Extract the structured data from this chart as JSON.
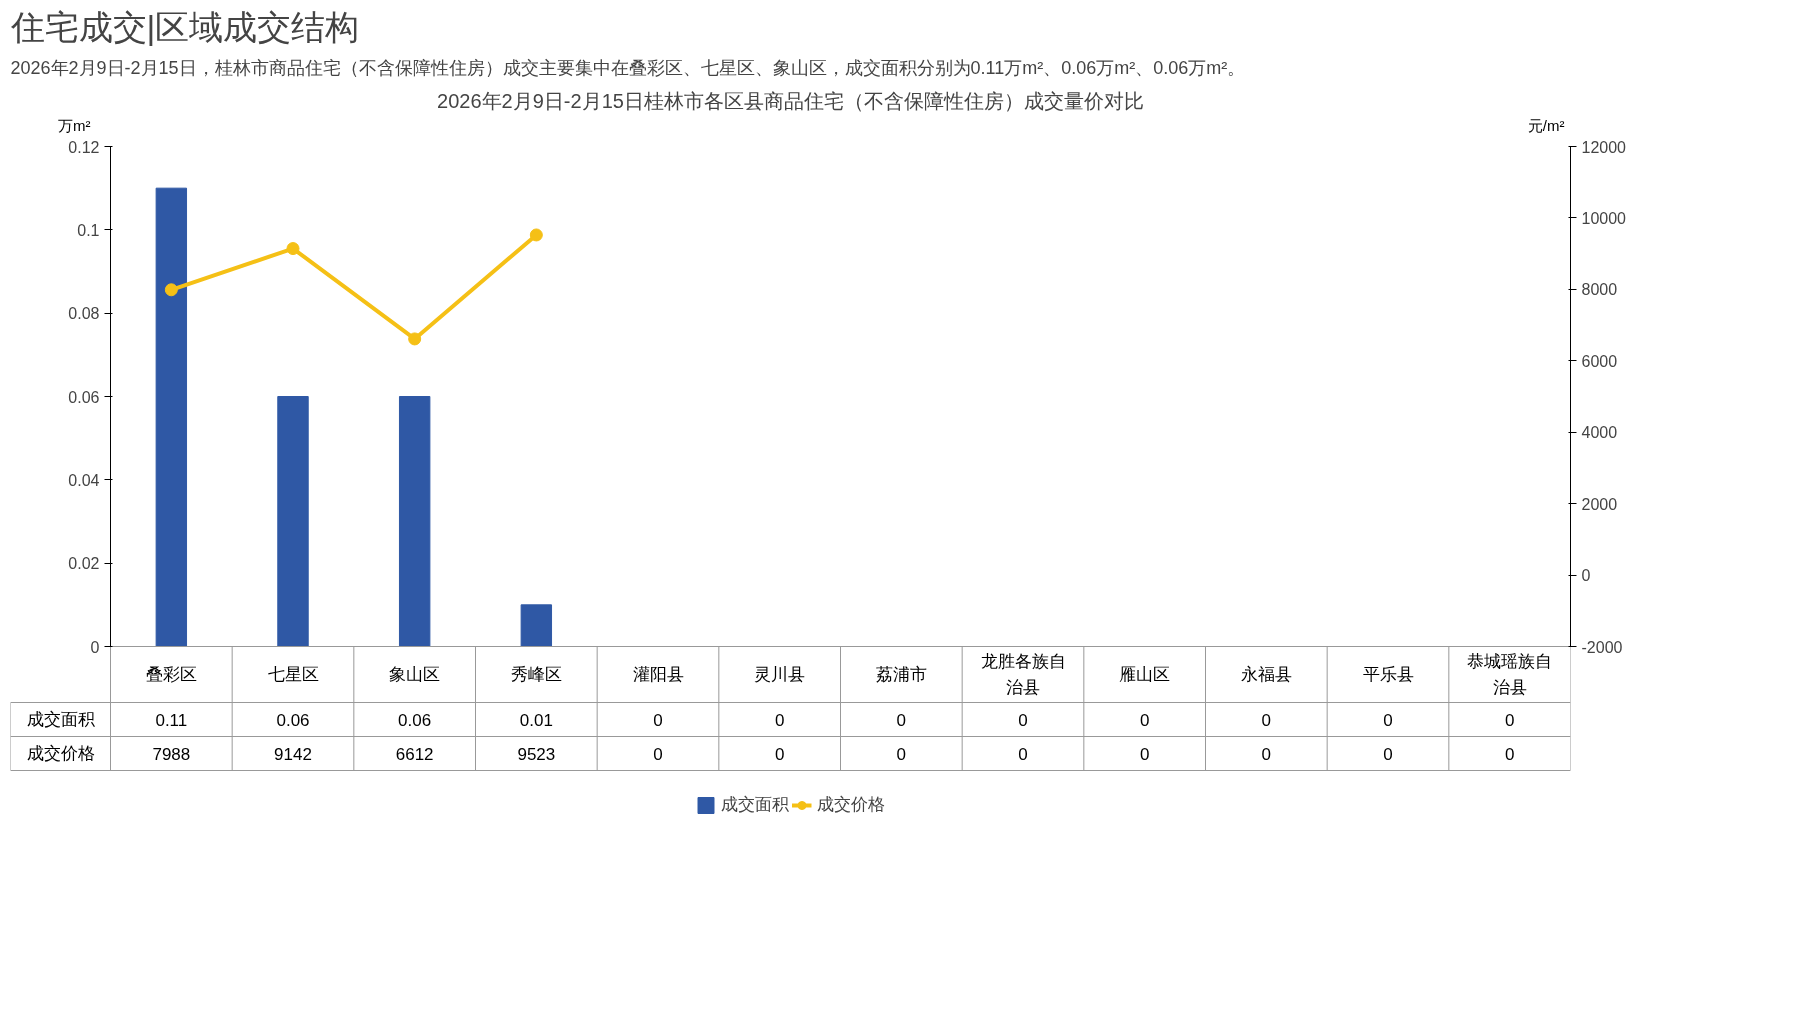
{
  "chart_data": {
    "type": "bar",
    "title": "2026年2月9日-2月15日桂林市各区县商品住宅（不含保障性住房）成交量价对比",
    "annotations": [
      "住宅成交|区域成交结构",
      "2026年2月9日-2月15日，桂林市商品住宅（不含保障性住房）成交主要集中在叠彩区、七星区、象山区，成交面积分别为0.11万m²、0.06万m²、0.06万m²。"
    ],
    "ylabel": "万m²",
    "y2label": "元/m²",
    "categories": [
      "叠彩区",
      "七星区",
      "象山区",
      "秀峰区",
      "灌阳县",
      "灵川县",
      "荔浦市",
      "龙胜各族自治县",
      "雁山区",
      "永福县",
      "平乐县",
      "恭城瑶族自治县"
    ],
    "series": [
      {
        "name": "成交面积",
        "color": "#2f58a5",
        "values": [
          0.11,
          0.06,
          0.06,
          0.01,
          0,
          0,
          0,
          0,
          0,
          0,
          0,
          0
        ],
        "value_labels": [
          "0.11",
          "0.06",
          "0.06",
          "0.01",
          "0",
          "0",
          "0",
          "0",
          "0",
          "0",
          "0",
          "0"
        ]
      },
      {
        "name": "成交价格",
        "type": "line",
        "axis": "y2",
        "color": "#f5c016",
        "marker": "circle",
        "values": [
          7988,
          9142,
          6612,
          9523,
          null,
          null,
          null,
          null,
          null,
          null,
          null,
          null
        ],
        "value_labels": [
          "7988",
          "9142",
          "6612",
          "9523",
          "0",
          "0",
          "0",
          "0",
          "0",
          "0",
          "0",
          "0"
        ]
      }
    ],
    "ylim": [
      0,
      0.12
    ],
    "yticks": [
      0,
      0.02,
      0.04,
      0.06,
      0.08,
      0.1,
      0.12
    ],
    "y2lim": [
      -2000,
      12000
    ],
    "y2ticks": [
      -2000,
      0,
      2000,
      4000,
      6000,
      8000,
      10000,
      12000
    ],
    "grid": false,
    "legend": "bottom"
  }
}
